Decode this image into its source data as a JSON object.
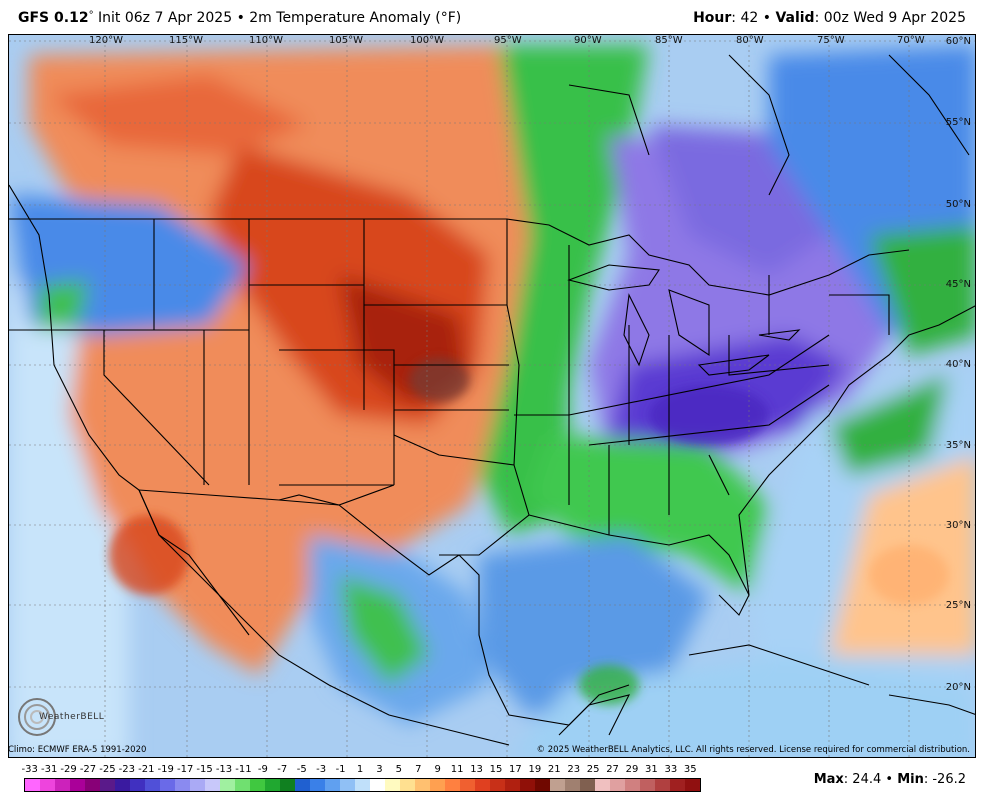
{
  "header": {
    "model": "GFS 0.12",
    "degree": "°",
    "init": " Init 06z 7 Apr 2025 • 2m Temperature Anomaly (°F)",
    "hour_label": "Hour",
    "hour_value": ": 42 • ",
    "valid_label": "Valid",
    "valid_value": ": 00z Wed 9 Apr 2025"
  },
  "map": {
    "longitudes": [
      "120°W",
      "115°W",
      "110°W",
      "105°W",
      "100°W",
      "95°W",
      "90°W",
      "85°W",
      "80°W",
      "75°W",
      "70°W"
    ],
    "latitudes": [
      "60°N",
      "55°N",
      "50°N",
      "45°N",
      "40°N",
      "35°N",
      "30°N",
      "25°N",
      "20°N"
    ],
    "logo_text": "WeatherBELL"
  },
  "credits": {
    "climo": "Climo: ECMWF ERA-5 1991-2020",
    "copyright": "© 2025 WeatherBELL Analytics, LLC. All rights reserved. License required for commercial distribution."
  },
  "legend": {
    "labels": [
      "-33",
      "-31",
      "-29",
      "-27",
      "-25",
      "-23",
      "-21",
      "-19",
      "-17",
      "-15",
      "-13",
      "-11",
      "-9",
      "-7",
      "-5",
      "-3",
      "-1",
      "1",
      "3",
      "5",
      "7",
      "9",
      "11",
      "13",
      "15",
      "17",
      "19",
      "21",
      "23",
      "25",
      "27",
      "29",
      "31",
      "33",
      "35"
    ],
    "colors": [
      "#ff66ff",
      "#ee44dd",
      "#cc22bb",
      "#aa0099",
      "#880077",
      "#5a1a8a",
      "#3a1aa0",
      "#4030c0",
      "#5050d8",
      "#6a6ae8",
      "#8a8af0",
      "#aaaaf5",
      "#c8c8fa",
      "#a0f0a0",
      "#70e070",
      "#40c840",
      "#20a830",
      "#108020",
      "#2060d0",
      "#3a80e8",
      "#60a0f0",
      "#90c0f5",
      "#c0e0fa",
      "#ffffff",
      "#fffac0",
      "#ffe090",
      "#ffc070",
      "#ffa050",
      "#ff8040",
      "#f06030",
      "#e04020",
      "#c83018",
      "#b02010",
      "#901008",
      "#700800",
      "#c0a090",
      "#a08070",
      "#806050",
      "#f0c0c0",
      "#e0a0a0",
      "#d08080",
      "#c06060",
      "#b04040",
      "#a02020",
      "#901010"
    ],
    "max_label": "Max",
    "max_value": ": 24.4 • ",
    "min_label": "Min",
    "min_value": ": -26.2"
  }
}
